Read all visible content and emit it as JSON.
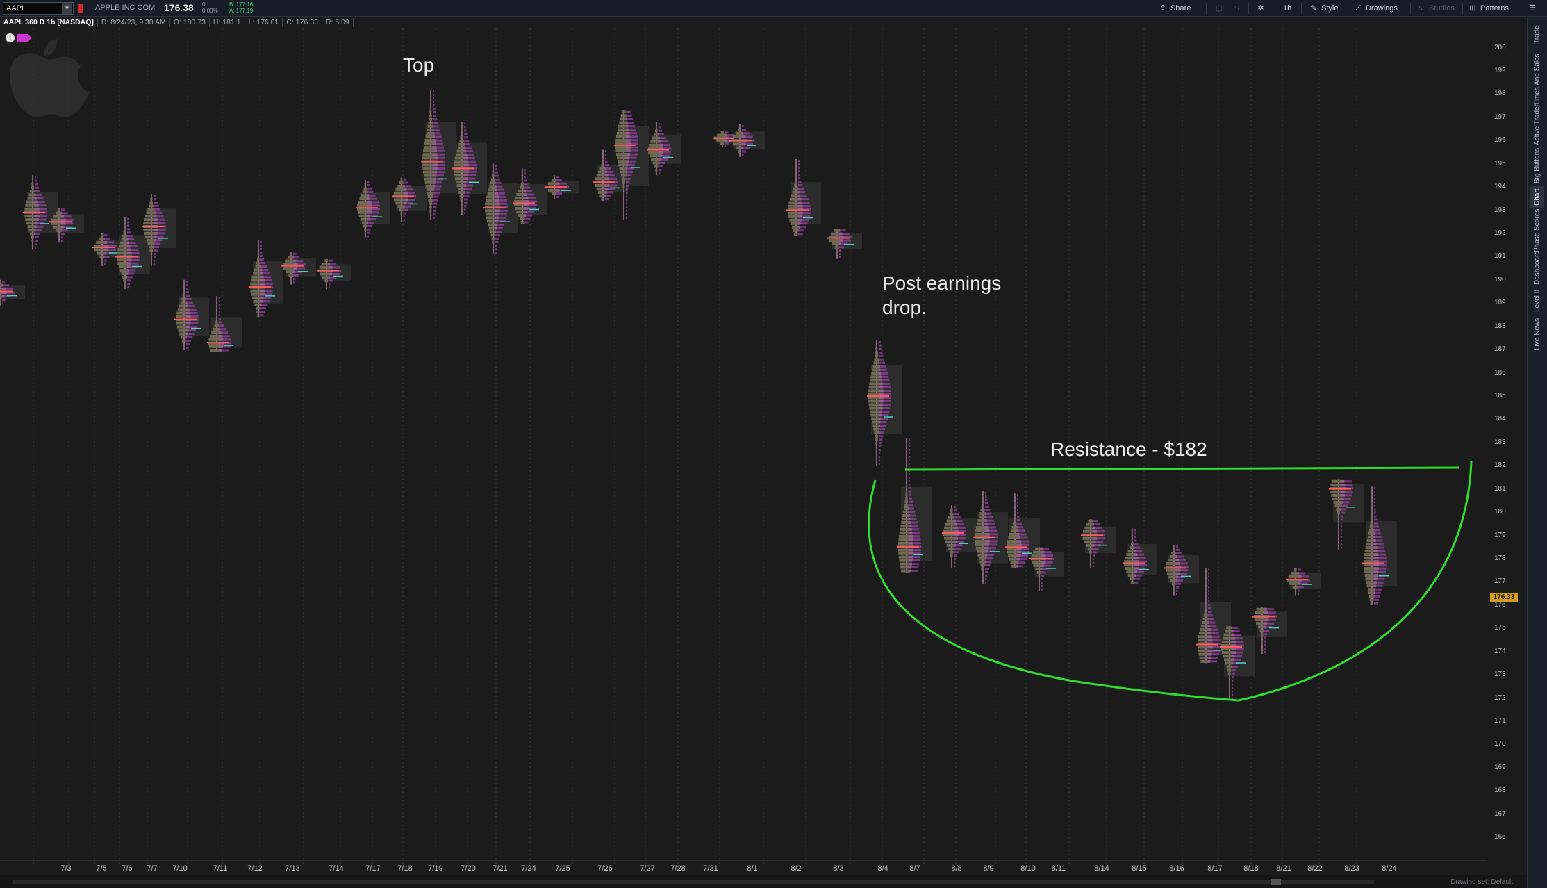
{
  "toolbar": {
    "symbol": "AAPL",
    "company": "APPLE INC COM",
    "last_price": "176.38",
    "change": "0",
    "change_pct": "0.00%",
    "bid": "B: 177.16",
    "ask": "A: 177.19",
    "share_label": "Share",
    "timeframe": "1h",
    "style_label": "Style",
    "drawings_label": "Drawings",
    "studies_label": "Studies",
    "patterns_label": "Patterns"
  },
  "infobar": {
    "title": "AAPL 360 D 1h [NASDAQ]",
    "date": "D: 8/24/23, 9:30 AM",
    "open": "O: 180.73",
    "high": "H: 181.1",
    "low": "L: 176.01",
    "close": "C: 176.33",
    "range": "R: 5.09"
  },
  "annotations": {
    "top": "Top",
    "post_earnings_1": "Post earnings",
    "post_earnings_2": "drop.",
    "resistance": "Resistance - $182"
  },
  "side_tabs": [
    "Trade",
    "Times And Sales",
    "Active Trader",
    "Big Buttons",
    "Chart",
    "Phase Scores",
    "Dashboard",
    "Level II",
    "Live News"
  ],
  "active_side_tab": "Chart",
  "scrollbar": {
    "drawing_set": "Drawing set: Default"
  },
  "colors": {
    "volume_profile": "#6e6a52",
    "tpo_letters": "#c04bd0",
    "poc_line": "#ff5a5a",
    "va_line": "#4fd1c5",
    "annotation_green": "#2fdc2f",
    "price_tag": "#d29c1f"
  },
  "chart_data": {
    "type": "volume-profile",
    "title": "AAPL 360 D 1h [NASDAQ]",
    "ylim": [
      165,
      200.5
    ],
    "y_ticks": [
      166,
      167,
      168,
      169,
      170,
      171,
      172,
      173,
      174,
      175,
      176,
      177,
      178,
      179,
      180,
      181,
      182,
      183,
      184,
      185,
      186,
      187,
      188,
      189,
      190,
      191,
      192,
      193,
      194,
      195,
      196,
      197,
      198,
      199,
      200
    ],
    "current_price": "176.33",
    "dates": [
      "7/3",
      "7/5",
      "7/6",
      "7/7",
      "7/10",
      "7/11",
      "7/12",
      "7/13",
      "7/14",
      "7/17",
      "7/18",
      "7/19",
      "7/20",
      "7/21",
      "7/24",
      "7/25",
      "7/26",
      "7/27",
      "7/28",
      "7/31",
      "8/1",
      "8/2",
      "8/3",
      "8/4",
      "8/7",
      "8/8",
      "8/9",
      "8/10",
      "8/11",
      "8/14",
      "8/15",
      "8/16",
      "8/17",
      "8/18",
      "8/21",
      "8/22",
      "8/23",
      "8/24"
    ],
    "profiles": [
      {
        "date": "6/30",
        "high": 190.0,
        "low": 188.9,
        "poc": 189.5
      },
      {
        "date": "7/3",
        "high": 194.5,
        "low": 191.3,
        "poc": 192.9
      },
      {
        "date": "7/5",
        "high": 193.1,
        "low": 191.6,
        "poc": 192.5
      },
      {
        "date": "7/6",
        "high": 192.0,
        "low": 190.6,
        "poc": 191.4
      },
      {
        "date": "7/7",
        "high": 192.7,
        "low": 189.6,
        "poc": 191.0
      },
      {
        "date": "7/10",
        "high": 193.7,
        "low": 190.6,
        "poc": 192.3
      },
      {
        "date": "7/11",
        "high": 190.0,
        "low": 187.0,
        "poc": 188.3
      },
      {
        "date": "7/12",
        "high": 189.3,
        "low": 186.9,
        "poc": 187.3
      },
      {
        "date": "7/13",
        "high": 191.7,
        "low": 188.4,
        "poc": 189.7
      },
      {
        "date": "7/14",
        "high": 191.2,
        "low": 189.8,
        "poc": 190.6
      },
      {
        "date": "7/17",
        "high": 190.9,
        "low": 189.6,
        "poc": 190.4
      },
      {
        "date": "7/18",
        "high": 194.3,
        "low": 191.8,
        "poc": 193.1
      },
      {
        "date": "7/19",
        "high": 194.4,
        "low": 192.5,
        "poc": 193.6
      },
      {
        "date": "7/20",
        "high": 198.2,
        "low": 192.6,
        "poc": 195.1
      },
      {
        "date": "7/21",
        "high": 196.8,
        "low": 192.8,
        "poc": 194.8
      },
      {
        "date": "7/24",
        "high": 195.0,
        "low": 191.1,
        "poc": 193.1
      },
      {
        "date": "7/25",
        "high": 194.8,
        "low": 192.4,
        "poc": 193.3
      },
      {
        "date": "7/26",
        "high": 194.5,
        "low": 193.5,
        "poc": 194.0
      },
      {
        "date": "7/27",
        "high": 195.6,
        "low": 193.4,
        "poc": 194.2
      },
      {
        "date": "7/28",
        "high": 197.3,
        "low": 192.6,
        "poc": 195.8
      },
      {
        "date": "7/31",
        "high": 196.8,
        "low": 194.5,
        "poc": 195.6
      },
      {
        "date": "8/1",
        "high": 196.4,
        "low": 195.7,
        "poc": 196.1
      },
      {
        "date": "8/2",
        "high": 196.7,
        "low": 195.3,
        "poc": 196.0
      },
      {
        "date": "8/3",
        "high": 195.2,
        "low": 191.9,
        "poc": 193.0
      },
      {
        "date": "8/4",
        "high": 192.2,
        "low": 190.9,
        "poc": 191.8
      },
      {
        "date": "8/7",
        "high": 187.4,
        "low": 182.0,
        "poc": 185.0
      },
      {
        "date": "8/8",
        "high": 183.2,
        "low": 177.4,
        "poc": 178.5
      },
      {
        "date": "8/9",
        "high": 180.3,
        "low": 177.6,
        "poc": 179.1
      },
      {
        "date": "8/10",
        "high": 180.9,
        "low": 176.9,
        "poc": 178.9
      },
      {
        "date": "8/11",
        "high": 180.8,
        "low": 177.6,
        "poc": 178.5
      },
      {
        "date": "8/14",
        "high": 178.5,
        "low": 176.6,
        "poc": 178.0
      },
      {
        "date": "8/15",
        "high": 179.7,
        "low": 177.6,
        "poc": 179.0
      },
      {
        "date": "8/16",
        "high": 179.3,
        "low": 176.9,
        "poc": 177.8
      },
      {
        "date": "8/17",
        "high": 178.6,
        "low": 176.4,
        "poc": 177.6
      },
      {
        "date": "8/18",
        "high": 177.6,
        "low": 173.5,
        "poc": 174.3
      },
      {
        "date": "8/21",
        "high": 175.1,
        "low": 171.9,
        "poc": 174.2
      },
      {
        "date": "8/22",
        "high": 175.9,
        "low": 173.9,
        "poc": 175.5
      },
      {
        "date": "8/23",
        "high": 177.6,
        "low": 176.4,
        "poc": 177.1
      },
      {
        "date": "8/24a",
        "high": 181.4,
        "low": 178.4,
        "poc": 181.0
      },
      {
        "date": "8/24b",
        "high": 181.1,
        "low": 176.0,
        "poc": 177.8
      }
    ],
    "resistance": 182
  }
}
